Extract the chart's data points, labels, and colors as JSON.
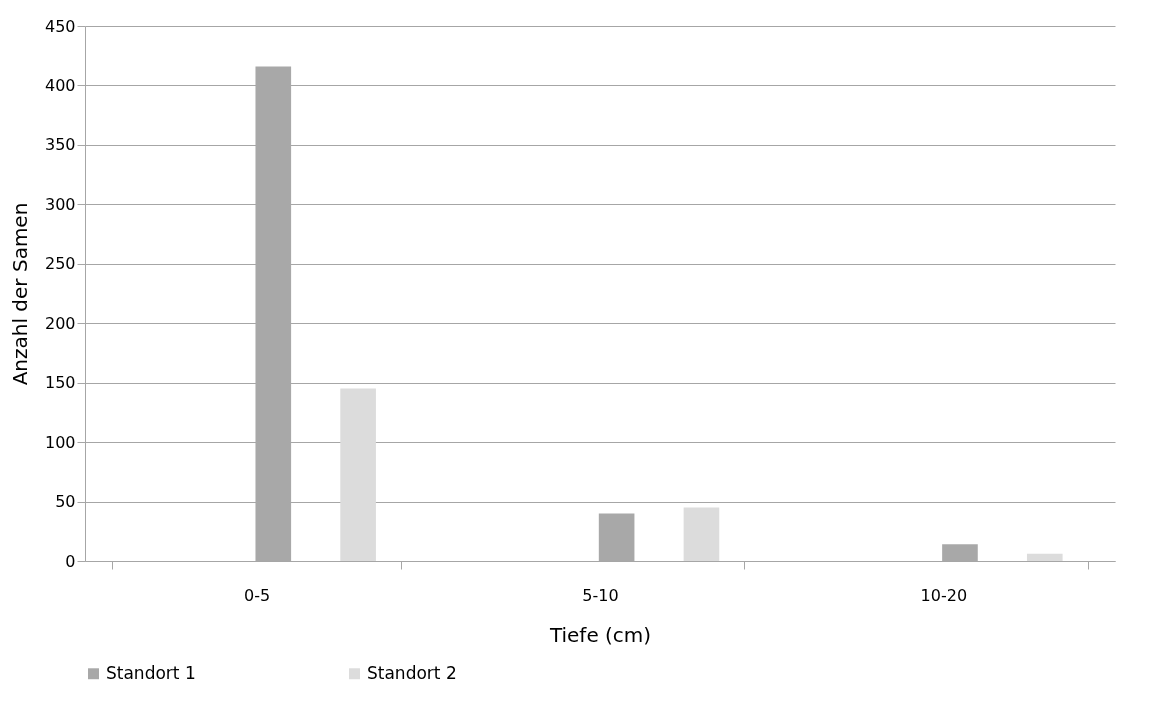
{
  "chart_data": {
    "type": "bar",
    "xlabel": "Tiefe (cm)",
    "ylabel": "Anzahl der Samen",
    "categories": [
      "0-5",
      "5-10",
      "10-20"
    ],
    "series": [
      {
        "name": "Standort 1",
        "color": "#a8a8a8",
        "values": [
          416,
          40,
          14
        ]
      },
      {
        "name": "Standort 2",
        "color": "#dcdcdc",
        "values": [
          145,
          45,
          6
        ]
      }
    ],
    "ylim": [
      0,
      450
    ],
    "yticks": [
      0,
      50,
      100,
      150,
      200,
      250,
      300,
      350,
      400,
      450
    ],
    "grid": "y",
    "legend": "bottom"
  }
}
